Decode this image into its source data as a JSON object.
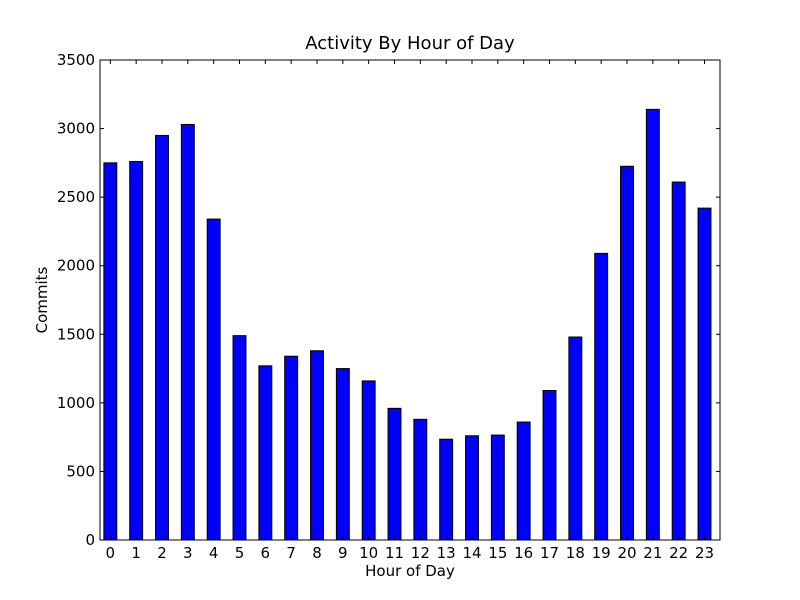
{
  "chart_data": {
    "type": "bar",
    "title": "Activity By Hour of Day",
    "xlabel": "Hour of Day",
    "ylabel": "Commits",
    "categories": [
      "0",
      "1",
      "2",
      "3",
      "4",
      "5",
      "6",
      "7",
      "8",
      "9",
      "10",
      "11",
      "12",
      "13",
      "14",
      "15",
      "16",
      "17",
      "18",
      "19",
      "20",
      "21",
      "22",
      "23"
    ],
    "values": [
      2750,
      2760,
      2950,
      3030,
      2340,
      1490,
      1270,
      1340,
      1380,
      1250,
      1160,
      960,
      880,
      735,
      760,
      765,
      860,
      1090,
      1480,
      2090,
      2725,
      3140,
      2610,
      2420
    ],
    "ylim": [
      0,
      3500
    ],
    "yticks": [
      "0",
      "500",
      "1000",
      "1500",
      "2000",
      "2500",
      "3000",
      "3500"
    ],
    "grid": false,
    "bar_color": "#0000ff"
  }
}
